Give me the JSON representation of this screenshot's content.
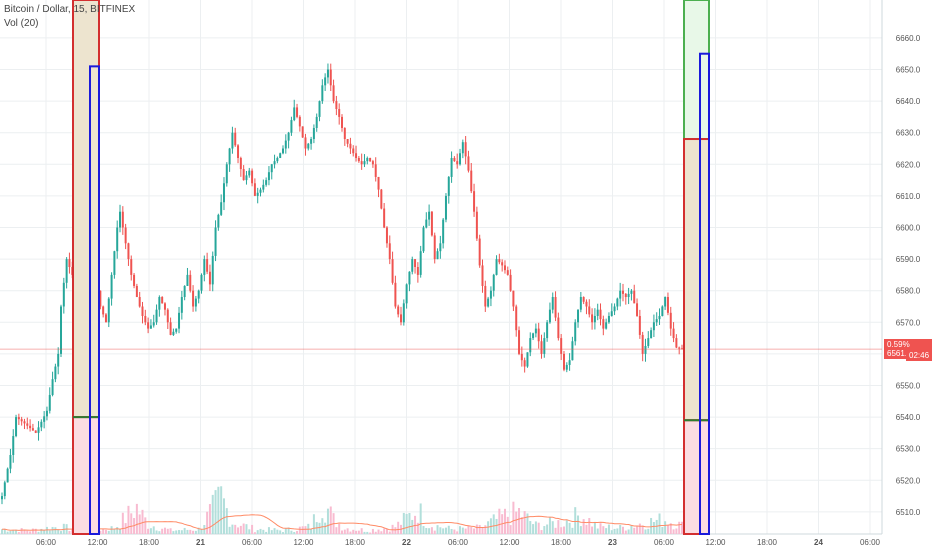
{
  "legend": {
    "symbol": "Bitcoin / Dollar, 15, BITFINEX",
    "volume": "Vol (20)"
  },
  "price_tag": {
    "label": "0.59% 6561.5",
    "countdown": "02:46"
  },
  "colors": {
    "up": "#26a69a",
    "down": "#ef5350",
    "up_vol": "#b2dfdb",
    "down_vol": "#f8bbd0",
    "grid": "#eceff1",
    "price_line": "#ef5350",
    "zone_red": "#d32f2f",
    "zone_blue": "#1a1adb",
    "zone_green": "#2e7d32"
  },
  "chart_data": {
    "type": "candlestick",
    "title": "Bitcoin / Dollar, 15, BITFINEX",
    "ylim": [
      6503,
      6672
    ],
    "y_ticks": [
      "6510.0",
      "6520.0",
      "6530.0",
      "6540.0",
      "6550.0",
      "6560.0",
      "6570.0",
      "6580.0",
      "6590.0",
      "6600.0",
      "6610.0",
      "6620.0",
      "6630.0",
      "6640.0",
      "6650.0",
      "6660.0"
    ],
    "x_ticks": [
      "06:00",
      "12:00",
      "18:00",
      "21",
      "06:00",
      "12:00",
      "18:00",
      "22",
      "06:00",
      "12:00",
      "18:00",
      "23",
      "06:00",
      "12:00",
      "18:00",
      "24",
      "06:00"
    ],
    "last_price": 6561.5,
    "last_change": "0.59%",
    "close_path": [
      [
        0,
        6515
      ],
      [
        3,
        6528
      ],
      [
        5,
        6540
      ],
      [
        8,
        6538
      ],
      [
        12,
        6535
      ],
      [
        16,
        6542
      ],
      [
        18,
        6552
      ],
      [
        20,
        6560
      ],
      [
        21,
        6575
      ],
      [
        23,
        6590
      ],
      [
        25,
        6585
      ],
      [
        27,
        6588
      ],
      [
        28,
        6572
      ],
      [
        30,
        6580
      ],
      [
        32,
        6570
      ],
      [
        34,
        6580
      ],
      [
        35,
        6575
      ],
      [
        37,
        6570
      ],
      [
        39,
        6585
      ],
      [
        41,
        6600
      ],
      [
        42,
        6605
      ],
      [
        44,
        6595
      ],
      [
        46,
        6585
      ],
      [
        48,
        6578
      ],
      [
        50,
        6572
      ],
      [
        52,
        6568
      ],
      [
        54,
        6570
      ],
      [
        56,
        6578
      ],
      [
        58,
        6574
      ],
      [
        60,
        6566
      ],
      [
        62,
        6568
      ],
      [
        64,
        6578
      ],
      [
        66,
        6585
      ],
      [
        68,
        6575
      ],
      [
        70,
        6580
      ],
      [
        72,
        6590
      ],
      [
        74,
        6582
      ],
      [
        76,
        6600
      ],
      [
        78,
        6608
      ],
      [
        80,
        6620
      ],
      [
        82,
        6630
      ],
      [
        84,
        6622
      ],
      [
        86,
        6615
      ],
      [
        88,
        6618
      ],
      [
        90,
        6610
      ],
      [
        92,
        6612
      ],
      [
        94,
        6615
      ],
      [
        96,
        6620
      ],
      [
        98,
        6622
      ],
      [
        100,
        6625
      ],
      [
        102,
        6630
      ],
      [
        104,
        6638
      ],
      [
        106,
        6632
      ],
      [
        108,
        6625
      ],
      [
        110,
        6628
      ],
      [
        112,
        6635
      ],
      [
        114,
        6645
      ],
      [
        116,
        6650
      ],
      [
        118,
        6640
      ],
      [
        120,
        6635
      ],
      [
        122,
        6628
      ],
      [
        124,
        6625
      ],
      [
        126,
        6622
      ],
      [
        128,
        6620
      ],
      [
        130,
        6622
      ],
      [
        132,
        6620
      ],
      [
        134,
        6612
      ],
      [
        136,
        6600
      ],
      [
        138,
        6590
      ],
      [
        140,
        6575
      ],
      [
        142,
        6570
      ],
      [
        144,
        6582
      ],
      [
        146,
        6590
      ],
      [
        148,
        6585
      ],
      [
        150,
        6600
      ],
      [
        152,
        6605
      ],
      [
        154,
        6590
      ],
      [
        156,
        6595
      ],
      [
        158,
        6610
      ],
      [
        160,
        6622
      ],
      [
        162,
        6620
      ],
      [
        164,
        6627
      ],
      [
        166,
        6618
      ],
      [
        168,
        6605
      ],
      [
        170,
        6588
      ],
      [
        172,
        6575
      ],
      [
        174,
        6580
      ],
      [
        176,
        6590
      ],
      [
        178,
        6588
      ],
      [
        180,
        6585
      ],
      [
        182,
        6575
      ],
      [
        184,
        6560
      ],
      [
        186,
        6556
      ],
      [
        188,
        6565
      ],
      [
        190,
        6568
      ],
      [
        192,
        6560
      ],
      [
        194,
        6570
      ],
      [
        196,
        6578
      ],
      [
        198,
        6565
      ],
      [
        200,
        6555
      ],
      [
        202,
        6558
      ],
      [
        204,
        6570
      ],
      [
        206,
        6578
      ],
      [
        208,
        6575
      ],
      [
        210,
        6570
      ],
      [
        212,
        6574
      ],
      [
        214,
        6568
      ],
      [
        216,
        6572
      ],
      [
        218,
        6575
      ],
      [
        220,
        6580
      ],
      [
        222,
        6578
      ],
      [
        224,
        6580
      ],
      [
        226,
        6572
      ],
      [
        228,
        6560
      ],
      [
        230,
        6565
      ],
      [
        232,
        6570
      ],
      [
        234,
        6572
      ],
      [
        236,
        6578
      ],
      [
        238,
        6568
      ],
      [
        240,
        6562
      ],
      [
        242,
        6561.5
      ]
    ],
    "volume": [
      [
        0,
        4
      ],
      [
        10,
        3
      ],
      [
        20,
        6
      ],
      [
        30,
        3
      ],
      [
        40,
        5
      ],
      [
        48,
        22
      ],
      [
        52,
        8
      ],
      [
        60,
        3
      ],
      [
        70,
        4
      ],
      [
        78,
        30
      ],
      [
        82,
        10
      ],
      [
        90,
        4
      ],
      [
        100,
        3
      ],
      [
        110,
        6
      ],
      [
        114,
        28
      ],
      [
        118,
        12
      ],
      [
        122,
        5
      ],
      [
        130,
        3
      ],
      [
        140,
        6
      ],
      [
        148,
        20
      ],
      [
        152,
        8
      ],
      [
        160,
        4
      ],
      [
        170,
        5
      ],
      [
        178,
        14
      ],
      [
        184,
        18
      ],
      [
        190,
        7
      ],
      [
        200,
        10
      ],
      [
        206,
        16
      ],
      [
        212,
        6
      ],
      [
        220,
        5
      ],
      [
        228,
        9
      ],
      [
        236,
        12
      ],
      [
        242,
        7
      ]
    ],
    "zones": [
      {
        "kind": "left-red",
        "top": 6672,
        "bottom": 6503,
        "mid": 6540
      },
      {
        "kind": "left-blue",
        "top": 6651,
        "bottom": 6503,
        "mid": 6540
      },
      {
        "kind": "right-green",
        "top": 6672,
        "bottom": 6628
      },
      {
        "kind": "right-red",
        "top": 6628,
        "bottom": 6503,
        "mid": 6539
      },
      {
        "kind": "right-blue",
        "top": 6655,
        "bottom": 6503,
        "mid": 6539
      }
    ]
  }
}
